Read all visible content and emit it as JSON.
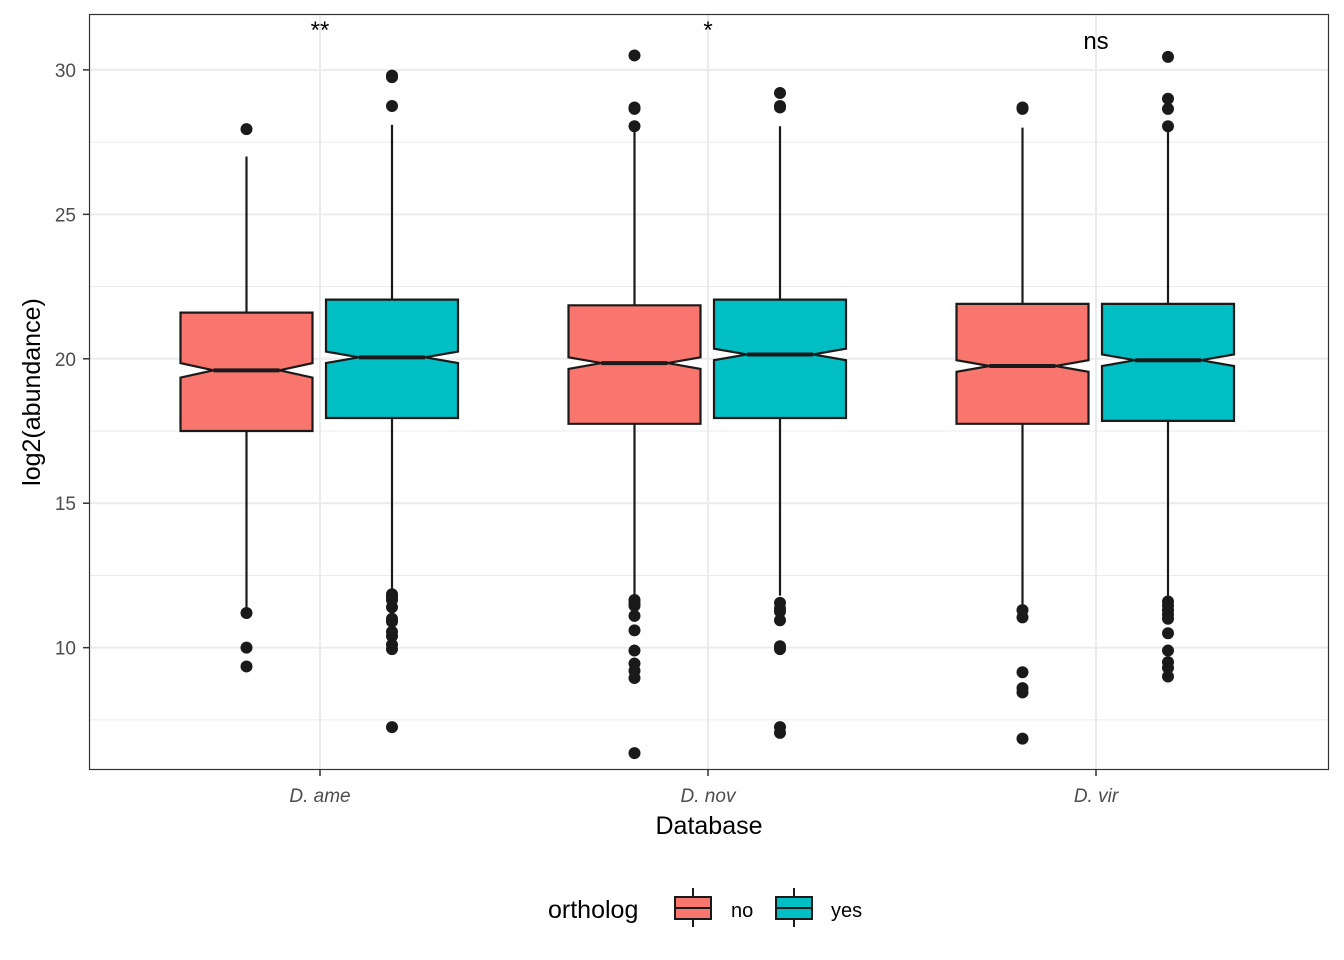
{
  "chart_data": {
    "type": "boxplot",
    "notched": true,
    "xlabel": "Database",
    "ylabel": "log2(abundance)",
    "categories": [
      "D. ame",
      "D. nov",
      "D. vir"
    ],
    "ylim": [
      5.8,
      31.9
    ],
    "y_ticks": [
      10,
      15,
      20,
      25,
      30
    ],
    "grid": true,
    "legend": {
      "title": "ortholog",
      "position": "bottom",
      "entries": [
        {
          "label": "no",
          "color": "#F8766D"
        },
        {
          "label": "yes",
          "color": "#00BFC4"
        }
      ]
    },
    "annotations": [
      {
        "category": "D. ame",
        "text": "**"
      },
      {
        "category": "D. nov",
        "text": "*"
      },
      {
        "category": "D. vir",
        "text": "ns"
      }
    ],
    "series": [
      {
        "name": "no",
        "color": "#F8766D",
        "boxes": [
          {
            "category": "D. ame",
            "q1": 17.5,
            "median": 19.6,
            "q3": 21.6,
            "notch_low": 19.35,
            "notch_high": 19.85,
            "whisker_low": 11.4,
            "whisker_high": 27.0,
            "outliers": [
              27.95,
              11.2,
              10.0,
              9.35
            ]
          },
          {
            "category": "D. nov",
            "q1": 17.75,
            "median": 19.85,
            "q3": 21.85,
            "notch_low": 19.65,
            "notch_high": 20.05,
            "whisker_low": 11.8,
            "whisker_high": 28.0,
            "outliers": [
              30.5,
              28.7,
              28.65,
              28.05,
              11.65,
              11.55,
              11.45,
              11.1,
              10.6,
              9.9,
              9.45,
              9.2,
              8.95,
              6.35
            ]
          },
          {
            "category": "D. vir",
            "q1": 17.75,
            "median": 19.75,
            "q3": 21.9,
            "notch_low": 19.55,
            "notch_high": 19.95,
            "whisker_low": 11.5,
            "whisker_high": 28.0,
            "outliers": [
              28.7,
              28.65,
              11.3,
              11.05,
              9.15,
              8.6,
              8.45,
              6.85
            ]
          }
        ]
      },
      {
        "name": "yes",
        "color": "#00BFC4",
        "boxes": [
          {
            "category": "D. ame",
            "q1": 17.95,
            "median": 20.05,
            "q3": 22.05,
            "notch_low": 19.85,
            "notch_high": 20.25,
            "whisker_low": 12.0,
            "whisker_high": 28.1,
            "outliers": [
              29.8,
              29.75,
              28.75,
              11.85,
              11.75,
              11.65,
              11.4,
              11.0,
              10.9,
              10.55,
              10.4,
              10.1,
              9.95,
              7.25
            ]
          },
          {
            "category": "D. nov",
            "q1": 17.95,
            "median": 20.15,
            "q3": 22.05,
            "notch_low": 19.95,
            "notch_high": 20.35,
            "whisker_low": 11.8,
            "whisker_high": 28.05,
            "outliers": [
              29.2,
              28.75,
              28.7,
              11.55,
              11.35,
              11.25,
              10.95,
              10.05,
              9.95,
              7.25,
              7.05
            ]
          },
          {
            "category": "D. vir",
            "q1": 17.85,
            "median": 19.95,
            "q3": 21.9,
            "notch_low": 19.75,
            "notch_high": 20.15,
            "whisker_low": 11.8,
            "whisker_high": 28.1,
            "outliers": [
              30.45,
              29.0,
              28.65,
              28.05,
              11.6,
              11.45,
              11.3,
              11.15,
              11.0,
              10.5,
              9.9,
              9.5,
              9.3,
              9.0
            ]
          }
        ]
      }
    ]
  }
}
